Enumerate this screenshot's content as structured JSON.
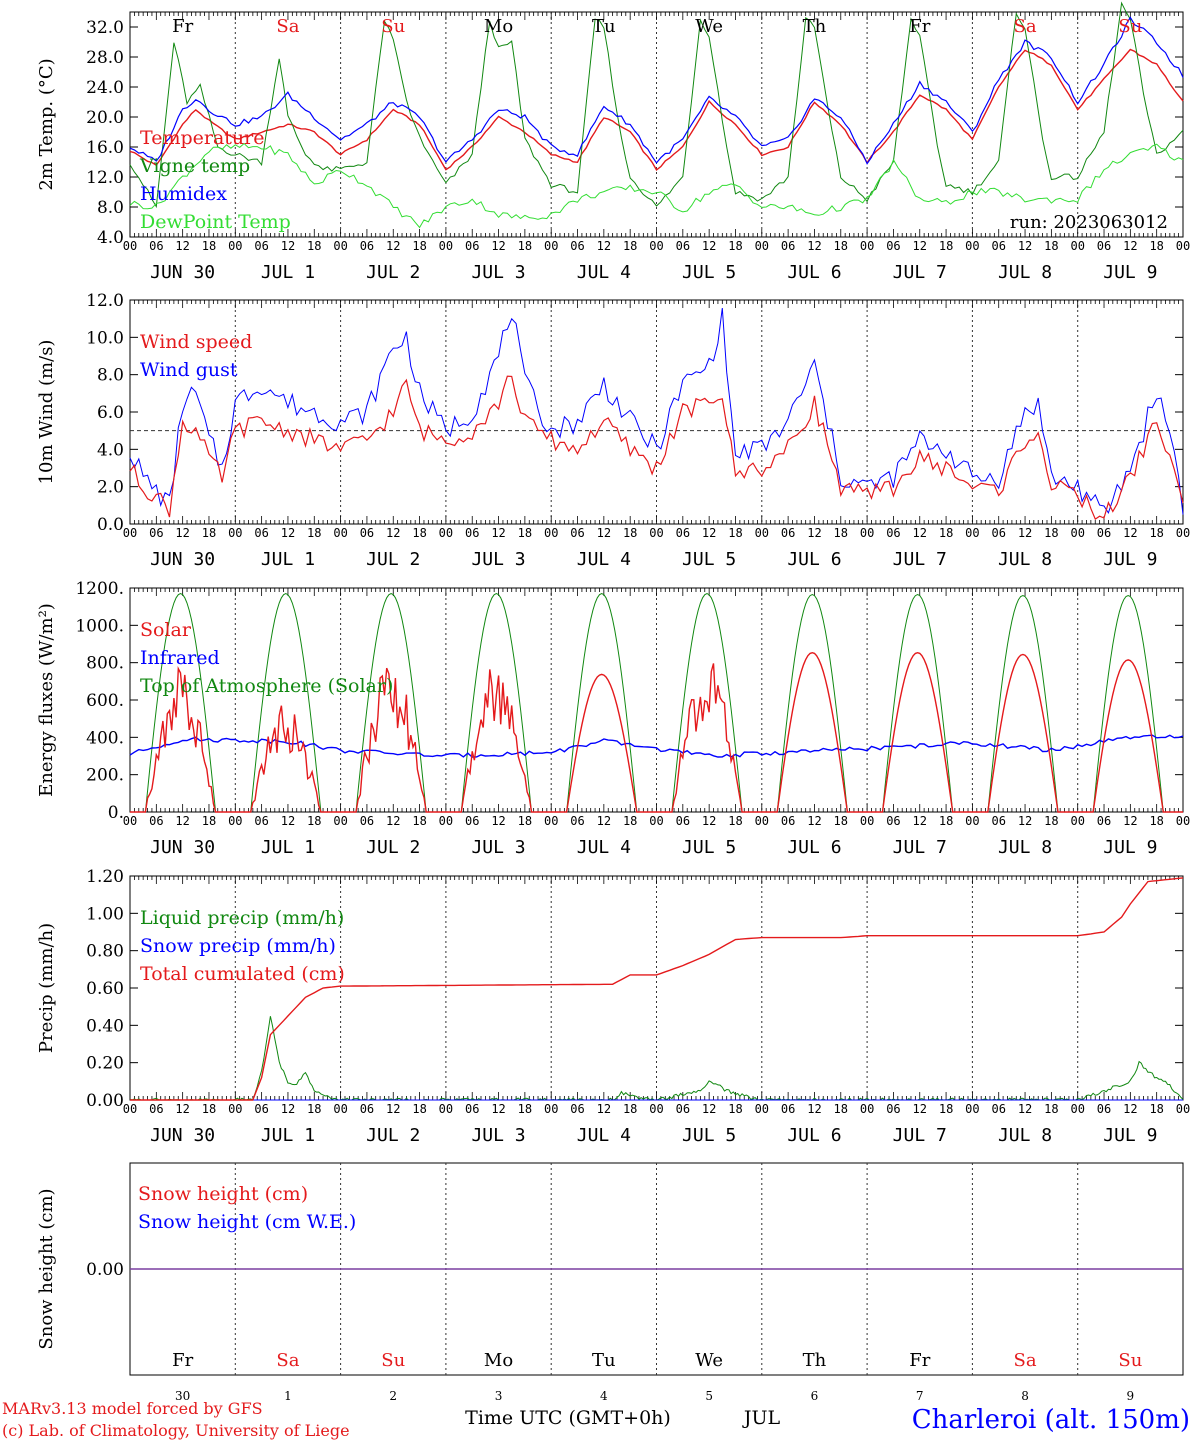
{
  "colors": {
    "red": "#e41a1c",
    "blue": "#0000ff",
    "green": "#118811",
    "lightgreen": "#33dd33",
    "purple": "#7a3fa0",
    "grid": "#333333"
  },
  "x_axis": {
    "hour_ticks": [
      "00",
      "06",
      "12",
      "18"
    ],
    "day_labels": [
      "JUN 30",
      "JUL  1",
      "JUL  2",
      "JUL  3",
      "JUL  4",
      "JUL  5",
      "JUL  6",
      "JUL  7",
      "JUL  8",
      "JUL  9"
    ],
    "weekdays": [
      {
        "name": "Fr",
        "weekend": false
      },
      {
        "name": "Sa",
        "weekend": true
      },
      {
        "name": "Su",
        "weekend": true
      },
      {
        "name": "Mo",
        "weekend": false
      },
      {
        "name": "Tu",
        "weekend": false
      },
      {
        "name": "We",
        "weekend": false
      },
      {
        "name": "Th",
        "weekend": false
      },
      {
        "name": "Fr",
        "weekend": false
      },
      {
        "name": "Sa",
        "weekend": true
      },
      {
        "name": "Su",
        "weekend": true
      }
    ],
    "day_numbers": [
      "30",
      "1",
      "2",
      "3",
      "4",
      "5",
      "6",
      "7",
      "8",
      "9"
    ],
    "month_label": "JUL",
    "title": "Time UTC (GMT+0h)"
  },
  "footer": {
    "model": "MARv3.13 model forced by GFS",
    "credit": "(c) Lab. of Climatology, University of Liege",
    "station": "Charleroi (alt. 150m)"
  },
  "chart_data": [
    {
      "type": "line",
      "ylabel": "2m Temp. (°C)",
      "ylim": [
        4,
        34
      ],
      "yticks": [
        "4.0",
        "8.0",
        "12.0",
        "16.0",
        "20.0",
        "24.0",
        "28.0",
        "32.0"
      ],
      "annotation": "run: 2023063012",
      "x_unit": "hours since JUN 30 00 UTC",
      "series": [
        {
          "name": "Temperature",
          "color": "red",
          "x": [
            0,
            6,
            12,
            15,
            18,
            24,
            30,
            36,
            42,
            48,
            54,
            60,
            66,
            72,
            78,
            84,
            90,
            96,
            102,
            108,
            114,
            120,
            126,
            132,
            138,
            144,
            150,
            156,
            162,
            168,
            174,
            180,
            186,
            192,
            198,
            204,
            210,
            216,
            222,
            228,
            234,
            240
          ],
          "values": [
            15.5,
            13.5,
            19,
            21,
            19.5,
            17,
            18,
            19,
            18,
            15,
            17,
            21,
            19,
            13,
            16,
            20,
            18,
            15,
            14,
            20,
            18,
            13,
            16,
            22,
            19,
            15,
            16,
            22,
            19,
            14,
            18,
            23,
            21,
            17,
            24,
            29,
            27,
            21,
            25,
            29,
            27,
            22
          ]
        },
        {
          "name": "Vigne temp",
          "color": "green",
          "x": [
            0,
            6,
            10,
            13,
            16,
            20,
            24,
            30,
            34,
            36,
            40,
            44,
            48,
            54,
            58,
            60,
            64,
            68,
            72,
            78,
            82,
            84,
            87,
            90,
            96,
            102,
            106,
            108,
            112,
            114,
            120,
            126,
            130,
            132,
            136,
            138,
            144,
            150,
            154,
            156,
            160,
            162,
            168,
            174,
            178,
            180,
            184,
            186,
            192,
            198,
            202,
            204,
            208,
            210,
            216,
            222,
            226,
            228,
            232,
            234,
            240
          ],
          "values": [
            14,
            8,
            30,
            22,
            24,
            16,
            15,
            14,
            28,
            20,
            15,
            13,
            13,
            14,
            33,
            30,
            20,
            15,
            11,
            15,
            33,
            29,
            30,
            17,
            11,
            10,
            33,
            32,
            17,
            12,
            8,
            12,
            33,
            31,
            16,
            10,
            9,
            12,
            33,
            32,
            18,
            12,
            9,
            14,
            33,
            31,
            16,
            11,
            10,
            14,
            34,
            32,
            17,
            12,
            12,
            18,
            35,
            33,
            20,
            15,
            18
          ]
        },
        {
          "name": "Humidex",
          "color": "blue",
          "x": [
            0,
            6,
            12,
            15,
            18,
            24,
            30,
            36,
            42,
            48,
            54,
            60,
            66,
            72,
            78,
            84,
            90,
            96,
            102,
            108,
            114,
            120,
            126,
            132,
            138,
            144,
            150,
            156,
            162,
            168,
            174,
            180,
            186,
            192,
            198,
            204,
            210,
            216,
            222,
            228,
            234,
            240
          ],
          "values": [
            16,
            14,
            21,
            22.5,
            21,
            19,
            20,
            23,
            20,
            17,
            19,
            22,
            20,
            14,
            17,
            21,
            20,
            16,
            15,
            21.5,
            19,
            14,
            17,
            22.5,
            20,
            16,
            17,
            22.5,
            20,
            14,
            19,
            24.5,
            22,
            18,
            25,
            30,
            28,
            22,
            27,
            33,
            30,
            25.5
          ]
        },
        {
          "name": "DewPoint Temp",
          "color": "lightgreen",
          "x": [
            0,
            6,
            12,
            18,
            24,
            30,
            36,
            42,
            48,
            54,
            60,
            66,
            72,
            78,
            84,
            90,
            96,
            102,
            108,
            114,
            120,
            126,
            132,
            138,
            144,
            150,
            156,
            162,
            168,
            174,
            180,
            186,
            192,
            198,
            204,
            210,
            216,
            222,
            228,
            234,
            240
          ],
          "values": [
            8.5,
            8,
            12,
            15.5,
            16,
            16,
            15,
            11,
            13,
            11,
            8,
            5.5,
            8,
            9,
            7,
            6.5,
            7,
            9,
            10,
            10.5,
            10,
            7.5,
            10,
            11,
            8,
            8,
            7,
            8,
            9,
            14,
            9,
            8.5,
            10,
            10,
            9,
            9,
            9,
            13,
            15,
            16,
            14
          ]
        }
      ]
    },
    {
      "type": "line",
      "ylabel": "10m Wind (m/s)",
      "ylim": [
        0,
        12
      ],
      "yticks": [
        "0.0",
        "2.0",
        "4.0",
        "6.0",
        "8.0",
        "10.0",
        "12.0"
      ],
      "reference_line": 5,
      "x_unit": "hours since JUN 30 00 UTC",
      "series": [
        {
          "name": "Wind speed",
          "color": "red",
          "x": [
            0,
            3,
            6,
            9,
            12,
            15,
            18,
            21,
            24,
            30,
            36,
            42,
            48,
            54,
            60,
            63,
            66,
            72,
            78,
            84,
            87,
            90,
            96,
            102,
            108,
            114,
            120,
            126,
            132,
            135,
            138,
            141,
            144,
            150,
            156,
            162,
            168,
            174,
            180,
            186,
            192,
            198,
            204,
            207,
            210,
            216,
            222,
            228,
            231,
            234,
            238,
            240
          ],
          "values": [
            3,
            2,
            1.5,
            0.8,
            5.5,
            5,
            3.5,
            2.5,
            5,
            5.5,
            5,
            4.5,
            4,
            4.5,
            6,
            7.5,
            5,
            4.5,
            5,
            6.5,
            8,
            5.5,
            4.5,
            4,
            5.5,
            4,
            3,
            6,
            6.5,
            7,
            2.5,
            3,
            3,
            4,
            6.5,
            2,
            1.5,
            2,
            3.5,
            3,
            2,
            1.8,
            4.5,
            5,
            2,
            1.5,
            0.3,
            2.5,
            4,
            5.5,
            3,
            0.8
          ]
        },
        {
          "name": "Wind gust",
          "color": "blue",
          "x": [
            0,
            3,
            6,
            9,
            12,
            15,
            18,
            21,
            24,
            30,
            36,
            42,
            48,
            54,
            60,
            63,
            66,
            72,
            78,
            84,
            87,
            90,
            96,
            102,
            108,
            114,
            120,
            126,
            132,
            135,
            138,
            141,
            144,
            150,
            156,
            162,
            168,
            174,
            180,
            186,
            192,
            198,
            204,
            207,
            210,
            216,
            222,
            228,
            231,
            234,
            238,
            240
          ],
          "values": [
            4,
            2.5,
            1.8,
            1,
            6.5,
            7,
            4.5,
            3,
            6.5,
            7.5,
            6.5,
            6,
            5.5,
            6,
            9.5,
            10,
            7,
            5,
            6,
            9,
            11.5,
            7.5,
            5,
            5.5,
            7.5,
            5.5,
            4,
            7.5,
            8.5,
            11,
            3.5,
            4,
            4,
            5.5,
            8.5,
            2.5,
            2,
            2.5,
            4.5,
            4,
            2.5,
            2.5,
            6,
            6.5,
            2.5,
            2,
            0.5,
            3,
            5,
            7.2,
            4,
            1
          ]
        }
      ]
    },
    {
      "type": "line",
      "ylabel": "Energy fluxes (W/m²)",
      "ylim": [
        0,
        1200
      ],
      "yticks": [
        "0.",
        "200.",
        "400.",
        "600.",
        "800.",
        "1000.",
        "1200."
      ],
      "x_unit": "hours since JUN 30 00 UTC",
      "peaks_solar": [
        800,
        600,
        880,
        840,
        760,
        860,
        880,
        880,
        870,
        840
      ],
      "peaks_toa": [
        1170,
        1170,
        1170,
        1170,
        1170,
        1170,
        1165,
        1165,
        1160,
        1160
      ],
      "infrared_values": [
        310,
        390,
        380,
        330,
        300,
        320,
        380,
        300,
        320,
        340,
        370,
        330,
        400
      ],
      "infrared_x": [
        0,
        12,
        36,
        48,
        72,
        96,
        108,
        132,
        150,
        168,
        192,
        210,
        228
      ],
      "series_names": [
        "Solar",
        "Infrared",
        "Top of Atmosphere (Solar)"
      ],
      "series_colors": [
        "red",
        "blue",
        "green"
      ]
    },
    {
      "type": "line",
      "ylabel": "Precip (mm/h)",
      "ylim": [
        0,
        1.2
      ],
      "yticks": [
        "0.00",
        "0.20",
        "0.40",
        "0.60",
        "0.80",
        "1.00",
        "1.20"
      ],
      "x_unit": "hours since JUN 30 00 UTC",
      "series": [
        {
          "name": "Liquid precip (mm/h)",
          "color": "green",
          "x": [
            0,
            28,
            30,
            32,
            34,
            36,
            38,
            40,
            42,
            44,
            48,
            96,
            110,
            112,
            114,
            120,
            130,
            132,
            134,
            136,
            140,
            144,
            216,
            228,
            230,
            232,
            234,
            236,
            238,
            240
          ],
          "values": [
            0,
            0,
            0.15,
            0.45,
            0.2,
            0.1,
            0.08,
            0.15,
            0.05,
            0.02,
            0,
            0,
            0,
            0.04,
            0.02,
            0,
            0.05,
            0.1,
            0.08,
            0.05,
            0.02,
            0,
            0,
            0.1,
            0.2,
            0.15,
            0.12,
            0.1,
            0.05,
            0
          ]
        },
        {
          "name": "Snow precip (mm/h)",
          "color": "blue",
          "x": [
            0,
            240
          ],
          "values": [
            0,
            0
          ]
        },
        {
          "name": "Total cumulated (cm)",
          "color": "red",
          "x": [
            0,
            28,
            30,
            32,
            36,
            40,
            44,
            48,
            110,
            114,
            120,
            126,
            132,
            138,
            144,
            162,
            168,
            216,
            222,
            226,
            228,
            232,
            240
          ],
          "values": [
            0,
            0,
            0.12,
            0.35,
            0.45,
            0.55,
            0.6,
            0.61,
            0.62,
            0.67,
            0.67,
            0.72,
            0.78,
            0.86,
            0.87,
            0.87,
            0.88,
            0.88,
            0.9,
            0.98,
            1.05,
            1.17,
            1.19
          ]
        }
      ]
    },
    {
      "type": "line",
      "ylabel": "Snow height (cm)",
      "ylim": [
        -1,
        1
      ],
      "yticks": [
        "0.00"
      ],
      "x_unit": "hours since JUN 30 00 UTC",
      "series": [
        {
          "name": "Snow height (cm)",
          "color": "red",
          "x": [
            0,
            240
          ],
          "values": [
            0,
            0
          ]
        },
        {
          "name": "Snow height (cm W.E.)",
          "color": "blue",
          "x": [
            0,
            240
          ],
          "values": [
            0,
            0
          ]
        }
      ]
    }
  ]
}
